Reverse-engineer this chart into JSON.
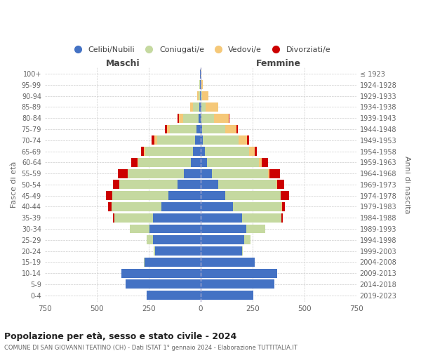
{
  "age_groups": [
    "0-4",
    "5-9",
    "10-14",
    "15-19",
    "20-24",
    "25-29",
    "30-34",
    "35-39",
    "40-44",
    "45-49",
    "50-54",
    "55-59",
    "60-64",
    "65-69",
    "70-74",
    "75-79",
    "80-84",
    "85-89",
    "90-94",
    "95-99",
    "100+"
  ],
  "birth_years": [
    "2019-2023",
    "2014-2018",
    "2009-2013",
    "2004-2008",
    "1999-2003",
    "1994-1998",
    "1989-1993",
    "1984-1988",
    "1979-1983",
    "1974-1978",
    "1969-1973",
    "1964-1968",
    "1959-1963",
    "1954-1958",
    "1949-1953",
    "1944-1948",
    "1939-1943",
    "1934-1938",
    "1929-1933",
    "1924-1928",
    "≤ 1923"
  ],
  "male_celibi": [
    260,
    360,
    380,
    270,
    220,
    230,
    245,
    230,
    190,
    155,
    110,
    80,
    45,
    35,
    25,
    18,
    10,
    5,
    3,
    2,
    2
  ],
  "male_coniugati": [
    0,
    0,
    0,
    2,
    5,
    30,
    95,
    185,
    240,
    270,
    280,
    270,
    255,
    230,
    185,
    130,
    75,
    30,
    8,
    3,
    1
  ],
  "male_vedovi": [
    0,
    0,
    0,
    0,
    0,
    0,
    0,
    0,
    0,
    1,
    1,
    2,
    5,
    8,
    12,
    15,
    20,
    15,
    5,
    1,
    0
  ],
  "male_divorziati": [
    0,
    0,
    0,
    0,
    0,
    0,
    2,
    5,
    15,
    30,
    30,
    45,
    30,
    15,
    15,
    10,
    5,
    1,
    0,
    0,
    0
  ],
  "female_celibi": [
    255,
    355,
    370,
    260,
    200,
    210,
    220,
    200,
    155,
    120,
    85,
    55,
    30,
    20,
    12,
    8,
    5,
    4,
    2,
    1,
    1
  ],
  "female_coniugati": [
    0,
    0,
    0,
    2,
    5,
    30,
    90,
    190,
    235,
    265,
    280,
    270,
    250,
    215,
    170,
    110,
    60,
    20,
    5,
    2,
    1
  ],
  "female_vedovi": [
    0,
    0,
    0,
    0,
    0,
    0,
    0,
    0,
    1,
    2,
    3,
    8,
    15,
    25,
    40,
    55,
    70,
    60,
    30,
    8,
    2
  ],
  "female_divorziati": [
    0,
    0,
    0,
    0,
    0,
    0,
    2,
    5,
    15,
    40,
    35,
    50,
    30,
    10,
    12,
    8,
    5,
    2,
    0,
    0,
    0
  ],
  "colors": {
    "celibi": "#4472C4",
    "coniugati": "#C5D9A0",
    "vedovi": "#F5C878",
    "divorziati": "#CC0000"
  },
  "xlim": 750,
  "title": "Popolazione per età, sesso e stato civile - 2024",
  "subtitle": "COMUNE DI SAN GIOVANNI TEATINO (CH) - Dati ISTAT 1° gennaio 2024 - Elaborazione TUTTITALIA.IT",
  "ylabel": "Fasce di età",
  "ylabel_right": "Anni di nascita",
  "legend_labels": [
    "Celibi/Nubili",
    "Coniugati/e",
    "Vedovi/e",
    "Divorziati/e"
  ],
  "maschi_label": "Maschi",
  "femmine_label": "Femmine",
  "bg_color": "#ffffff",
  "grid_color": "#cccccc"
}
